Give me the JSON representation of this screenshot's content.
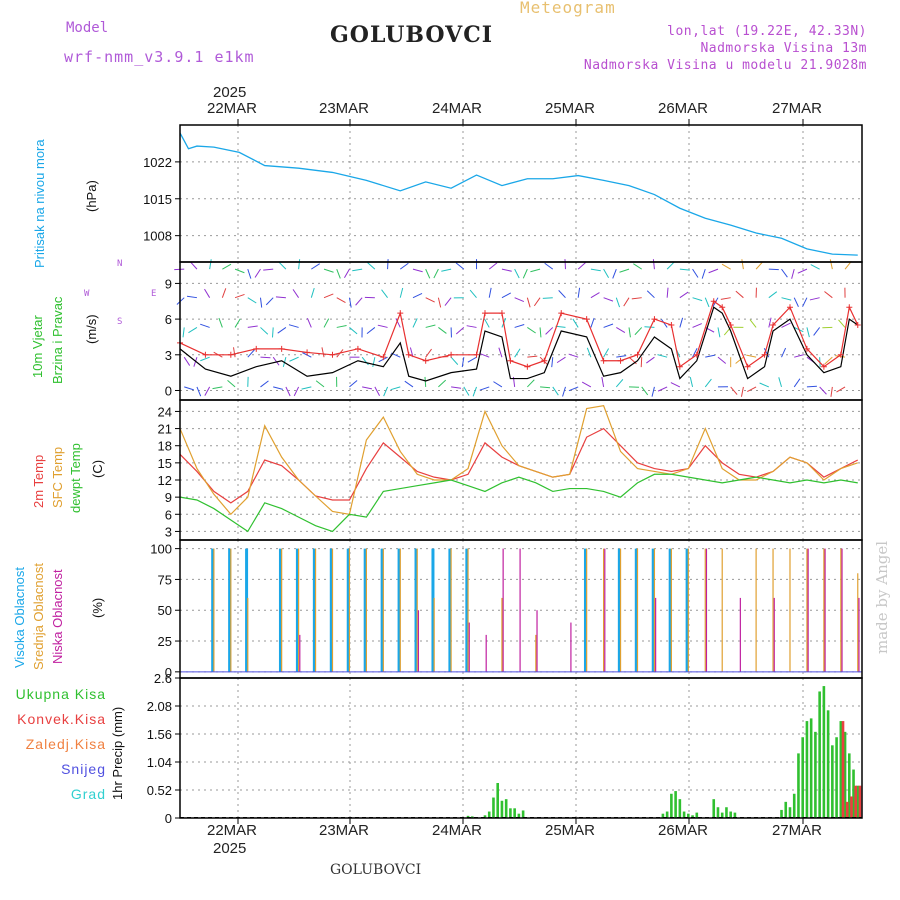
{
  "header": {
    "model_label": "Model",
    "model_name": "wrf-nmm_v3.9.1 e1km",
    "station": "GOLUBOVCI",
    "title": "Meteogram",
    "coords": "lon,lat (19.22E, 42.33N)",
    "elev": "Nadmorska Visina 13m",
    "elev_model": "Nadmorska Visina u modelu 21.9028m"
  },
  "top_axis": {
    "year": "2025",
    "dates": [
      "22MAR",
      "23MAR",
      "24MAR",
      "25MAR",
      "26MAR",
      "27MAR"
    ]
  },
  "bottom_axis": {
    "year": "2025",
    "dates": [
      "22MAR",
      "23MAR",
      "24MAR",
      "25MAR",
      "26MAR",
      "27MAR"
    ]
  },
  "footer": {
    "station": "GOLUBOVCI",
    "credit": "made by Angel"
  },
  "colors": {
    "pressure": "#1aa7e8",
    "wind_speed": "#000000",
    "wind_gust": "#e83030",
    "t2m": "#e84040",
    "tsfc": "#e0a030",
    "dewpt": "#30c030",
    "high_cloud": "#1aa7e8",
    "mid_cloud": "#e0a030",
    "low_cloud": "#c020a0",
    "rain_total": "#30c030",
    "rain_conv": "#e84040",
    "freezing": "#f08040",
    "snow": "#5050e0",
    "hail": "#30d0d0"
  },
  "panels": {
    "pressure": {
      "ylabel": "Pritisak na nivou mora",
      "unit": "(hPa)",
      "ticks": [
        "1008",
        "1015",
        "1022"
      ]
    },
    "wind": {
      "ylabel1": "10m Vjetar",
      "ylabel2": "Brzina i Pravac",
      "unit": "(m/s)",
      "ticks": [
        "0",
        "3",
        "6",
        "9"
      ],
      "compass": [
        "N",
        "W",
        "E",
        "S"
      ]
    },
    "temp": {
      "label1": "2m Temp",
      "label2": "SFC Temp",
      "label3": "dewpt Temp",
      "unit": "(C)",
      "ticks": [
        "3",
        "6",
        "9",
        "12",
        "15",
        "18",
        "21",
        "24"
      ]
    },
    "cloud": {
      "label1": "Visoka Oblacnost",
      "label2": "Srednja Oblacnost",
      "label3": "Niska Oblacnost",
      "unit": "(%)",
      "ticks": [
        "0",
        "25",
        "50",
        "75",
        "100"
      ]
    },
    "precip": {
      "unit": "1hr Precip (mm)",
      "ticks": [
        "0",
        "0.52",
        "1.04",
        "1.56",
        "2.08",
        "2.6"
      ],
      "legend": [
        {
          "label": "Ukupna Kisa",
          "color": "#30c030"
        },
        {
          "label": "Konvek.Kisa",
          "color": "#e84040"
        },
        {
          "label": "Zaledj.Kisa",
          "color": "#f08040"
        },
        {
          "label": "Snijeg",
          "color": "#5050e0"
        },
        {
          "label": "Grad",
          "color": "#30d0d0"
        }
      ]
    }
  },
  "chart_data": [
    {
      "type": "line",
      "ylabel": "Pritisak na nivou mora (hPa)",
      "ylim": [
        1003,
        1029
      ],
      "x_hours_from_start": [
        0,
        2,
        4,
        8,
        14,
        20,
        28,
        36,
        44,
        52,
        58,
        64,
        70,
        76,
        82,
        88,
        94,
        100,
        106,
        112,
        118,
        124,
        130,
        136,
        142,
        148,
        154,
        160
      ],
      "series": [
        {
          "name": "Pritisak na nivou mora",
          "values": [
            1027.5,
            1024.5,
            1025,
            1024.8,
            1023.8,
            1021.3,
            1020.8,
            1020,
            1018.5,
            1016.5,
            1018.2,
            1017,
            1019.5,
            1017.5,
            1018.8,
            1018.8,
            1019.4,
            1018.5,
            1017.5,
            1015.8,
            1013.2,
            1011.3,
            1010,
            1008.5,
            1007.5,
            1005.5,
            1004.5,
            1004.3
          ]
        }
      ]
    },
    {
      "type": "line",
      "ylabel": "10m Vjetar Brzina i Pravac (m/s)",
      "ylim": [
        -0.8,
        10.8
      ],
      "x_hours_from_start": [
        0,
        6,
        12,
        18,
        24,
        30,
        36,
        42,
        48,
        52,
        54,
        58,
        64,
        70,
        72,
        76,
        78,
        82,
        86,
        90,
        96,
        100,
        104,
        108,
        112,
        116,
        118,
        122,
        126,
        128,
        130,
        134,
        138,
        140,
        144,
        148,
        152,
        156,
        158,
        160
      ],
      "series": [
        {
          "name": "wind speed",
          "values": [
            3.5,
            1.8,
            1.2,
            2,
            2.5,
            1.2,
            1.5,
            2.5,
            2,
            4,
            1.2,
            0.8,
            1.5,
            1.8,
            5,
            4.5,
            1,
            1,
            1.5,
            5,
            4.5,
            1.2,
            1.5,
            2.5,
            4.5,
            3.5,
            1,
            2.5,
            7,
            6.5,
            5,
            1,
            2,
            5,
            6,
            3,
            1.5,
            2,
            6,
            5.5
          ]
        },
        {
          "name": "wind gust",
          "values": [
            4,
            3,
            3,
            3.5,
            3.5,
            3.2,
            3,
            3.5,
            2.8,
            6.5,
            3,
            2.5,
            3,
            3,
            6.5,
            6.5,
            2.5,
            2,
            2.5,
            6.5,
            6,
            2.5,
            2.5,
            3,
            6,
            5.5,
            2,
            3,
            7.5,
            7,
            5.5,
            2,
            3,
            5.5,
            7,
            3.5,
            2,
            3,
            7,
            5.5
          ]
        }
      ]
    },
    {
      "type": "line",
      "ylabel": "Temp (C)",
      "ylim": [
        1.5,
        26
      ],
      "x_hours_from_start": [
        0,
        4,
        8,
        12,
        16,
        20,
        24,
        28,
        32,
        36,
        40,
        44,
        48,
        52,
        56,
        60,
        64,
        68,
        72,
        76,
        80,
        84,
        88,
        92,
        96,
        100,
        104,
        108,
        112,
        116,
        120,
        124,
        128,
        132,
        136,
        140,
        144,
        148,
        152,
        156,
        160
      ],
      "series": [
        {
          "name": "2m Temp",
          "values": [
            16.5,
            13.5,
            10,
            8,
            10,
            15.5,
            14.5,
            12,
            9.2,
            8.5,
            8.5,
            14,
            18.5,
            16,
            13.5,
            12.5,
            12,
            13,
            18.5,
            16,
            14.5,
            13.5,
            12.5,
            13,
            19.5,
            21,
            18,
            15,
            14,
            13.5,
            14,
            18,
            15,
            13,
            12.5,
            13.5,
            16,
            15,
            12.5,
            14,
            15.5
          ]
        },
        {
          "name": "SFC Temp",
          "values": [
            21,
            14,
            9.5,
            6,
            9,
            21.5,
            16,
            12,
            9.2,
            6.5,
            6,
            19,
            23,
            17,
            13,
            12,
            12,
            14,
            24,
            18,
            14.5,
            13.5,
            12.5,
            13,
            24.5,
            25,
            17,
            14,
            13.5,
            13,
            14,
            21,
            14,
            12,
            12,
            13.5,
            16,
            15,
            12,
            14,
            15
          ]
        },
        {
          "name": "dewpt Temp",
          "values": [
            9,
            8.5,
            7,
            5,
            3,
            8,
            7,
            5.5,
            4,
            3,
            6,
            5.5,
            10,
            10.5,
            11,
            11.5,
            12,
            11,
            10,
            11.5,
            12.5,
            11.5,
            10,
            10.5,
            10.5,
            10,
            9,
            11.5,
            13,
            13,
            12.5,
            12,
            11.5,
            12,
            12.5,
            12,
            11.5,
            12,
            11.5,
            12,
            11.5
          ]
        }
      ]
    },
    {
      "type": "bar",
      "ylabel": "Oblacnost (%)",
      "ylim": [
        0,
        100
      ],
      "x_hours_from_start": [
        0,
        4,
        8,
        12,
        16,
        20,
        24,
        28,
        32,
        36,
        40,
        44,
        48,
        52,
        56,
        60,
        64,
        68,
        72,
        76,
        80,
        84,
        88,
        92,
        96,
        100,
        104,
        108,
        112,
        116,
        120,
        124,
        128,
        132,
        136,
        140,
        144,
        148,
        152,
        156,
        160
      ],
      "series": [
        {
          "name": "Visoka Oblacnost",
          "values": [
            0,
            0,
            100,
            100,
            100,
            0,
            100,
            100,
            100,
            100,
            100,
            100,
            100,
            100,
            100,
            100,
            100,
            100,
            0,
            0,
            0,
            0,
            0,
            0,
            100,
            0,
            100,
            100,
            100,
            100,
            100,
            0,
            0,
            0,
            0,
            0,
            0,
            0,
            0,
            0,
            0
          ]
        },
        {
          "name": "Srednja Oblacnost",
          "values": [
            0,
            0,
            100,
            100,
            60,
            0,
            100,
            100,
            100,
            100,
            100,
            100,
            100,
            100,
            100,
            60,
            100,
            100,
            0,
            60,
            0,
            30,
            0,
            0,
            100,
            100,
            100,
            100,
            100,
            100,
            100,
            100,
            100,
            0,
            100,
            100,
            100,
            100,
            100,
            100,
            80
          ]
        },
        {
          "name": "Niska Oblacnost",
          "values": [
            0,
            0,
            0,
            0,
            0,
            0,
            0,
            30,
            0,
            0,
            0,
            0,
            0,
            0,
            50,
            0,
            0,
            40,
            30,
            100,
            100,
            50,
            0,
            40,
            0,
            100,
            0,
            0,
            60,
            0,
            0,
            100,
            0,
            60,
            0,
            60,
            0,
            100,
            100,
            100,
            60
          ]
        }
      ]
    },
    {
      "type": "bar",
      "ylabel": "1hr Precip (mm)",
      "ylim": [
        0,
        2.6
      ],
      "x_hours_from_start": [
        68,
        69,
        72,
        73,
        74,
        75,
        76,
        77,
        78,
        79,
        80,
        81,
        114,
        115,
        116,
        117,
        118,
        119,
        120,
        121,
        122,
        126,
        127,
        128,
        129,
        130,
        131,
        142,
        143,
        144,
        145,
        146,
        147,
        148,
        149,
        150,
        151,
        152,
        153,
        154,
        155,
        156,
        157,
        158,
        159,
        160
      ],
      "series": [
        {
          "name": "Ukupna Kisa",
          "values": [
            0.04,
            0.03,
            0.05,
            0.12,
            0.38,
            0.65,
            0.32,
            0.35,
            0.18,
            0.18,
            0.08,
            0.14,
            0.08,
            0.12,
            0.45,
            0.5,
            0.35,
            0.12,
            0.08,
            0.05,
            0.1,
            0.35,
            0.2,
            0.1,
            0.2,
            0.12,
            0.1,
            0.15,
            0.3,
            0.2,
            0.45,
            1.2,
            1.5,
            1.8,
            1.85,
            1.6,
            2.35,
            2.45,
            2.0,
            1.35,
            1.5,
            1.8,
            1.6,
            1.2,
            0.9,
            0.6
          ]
        },
        {
          "name": "Konvek.Kisa",
          "values": [
            0,
            0,
            0,
            0,
            0,
            0,
            0,
            0,
            0,
            0,
            0,
            0,
            0,
            0,
            0,
            0,
            0,
            0,
            0,
            0,
            0,
            0,
            0,
            0,
            0,
            0,
            0,
            0,
            0,
            0,
            0,
            0,
            0,
            0,
            0,
            0,
            0,
            0,
            0,
            0,
            0,
            1.8,
            0.3,
            0.4,
            0.6,
            0.6
          ]
        }
      ]
    }
  ]
}
